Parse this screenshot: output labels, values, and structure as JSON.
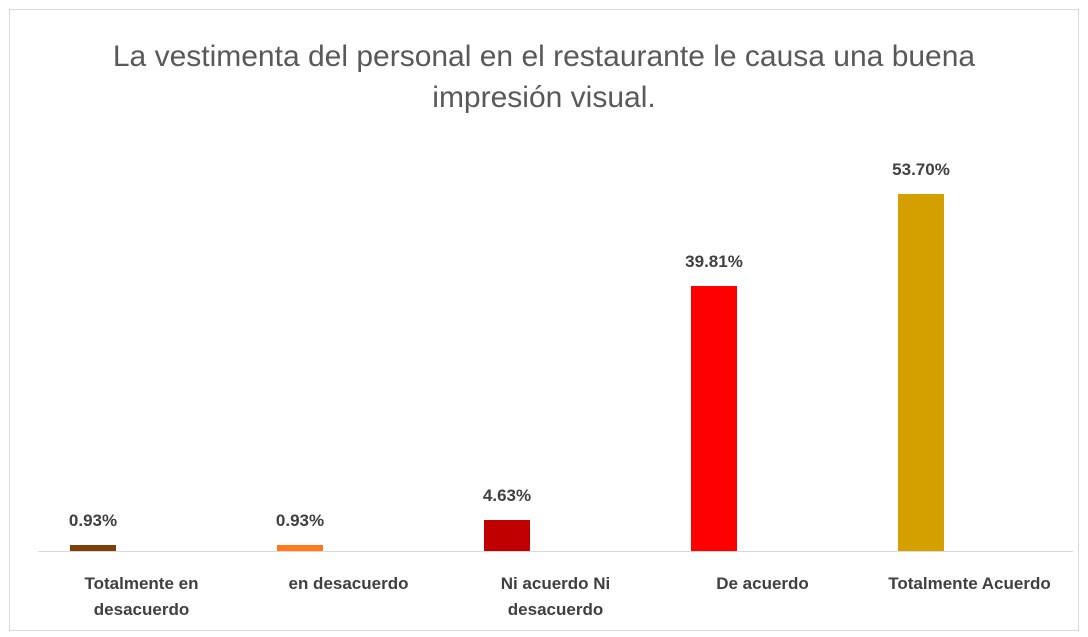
{
  "chart_data": {
    "type": "bar",
    "title": "La vestimenta del personal en el restaurante le causa una buena impresión visual.",
    "categories": [
      "Totalmente en desacuerdo",
      "en desacuerdo",
      "Ni acuerdo Ni desacuerdo",
      "De acuerdo",
      "Totalmente Acuerdo"
    ],
    "values": [
      0.93,
      0.93,
      4.63,
      39.81,
      53.7
    ],
    "value_labels": [
      "0.93%",
      "0.93%",
      "4.63%",
      "39.81%",
      "53.70%"
    ],
    "colors": [
      "#7F3F0A",
      "#FF7A1A",
      "#C00000",
      "#FF0000",
      "#D4A000"
    ],
    "ylim": [
      0,
      60
    ]
  }
}
